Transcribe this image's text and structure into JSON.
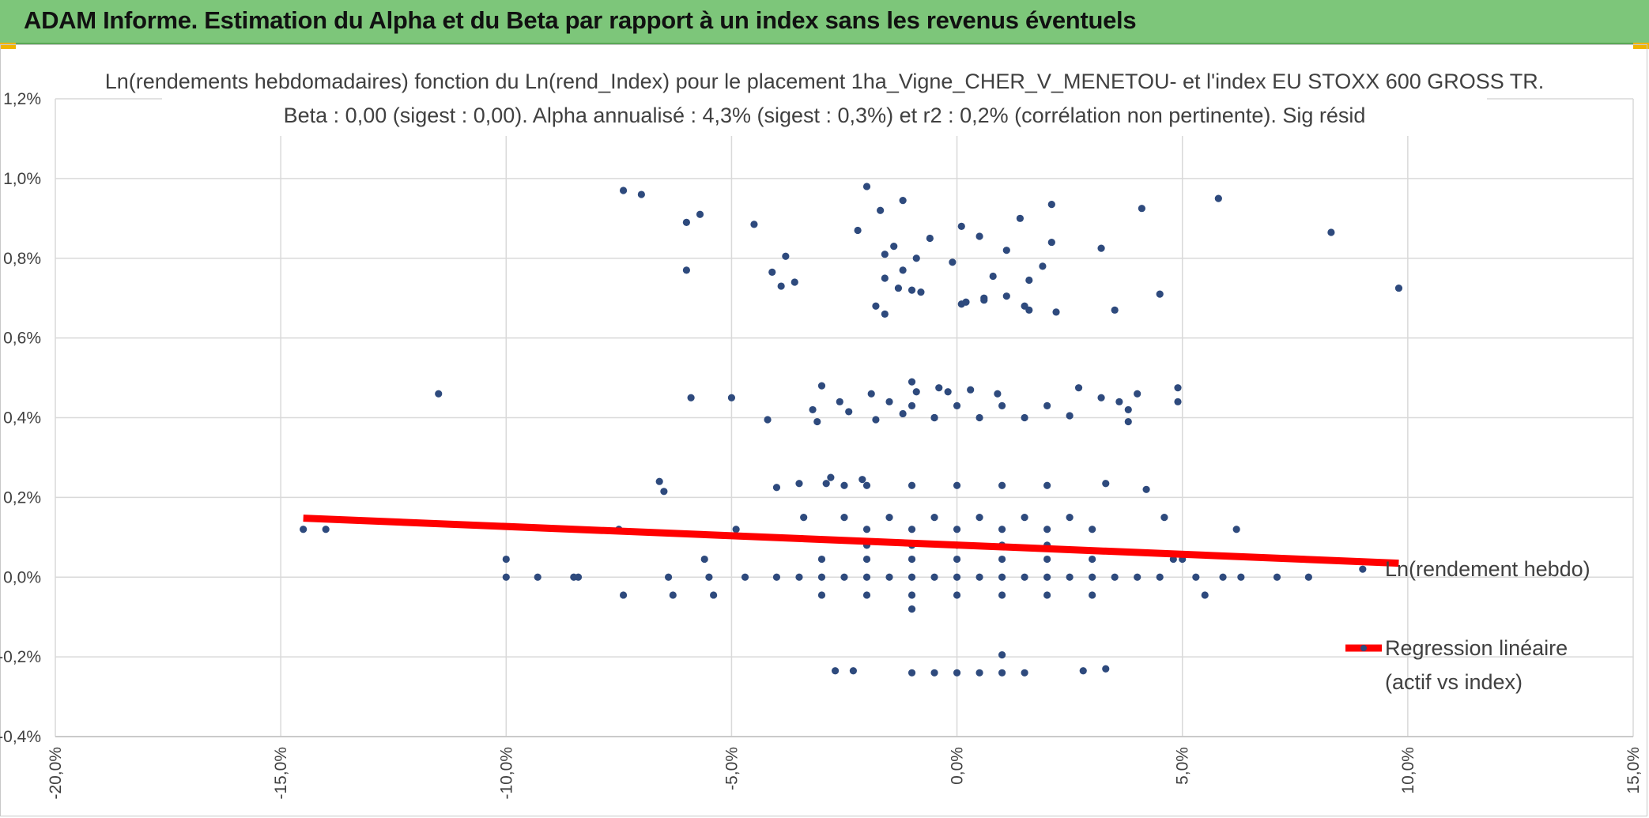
{
  "header": {
    "title": "ADAM Informe. Estimation du Alpha et du Beta par rapport à un index sans les revenus éventuels"
  },
  "colors": {
    "banner": "#7dc67a",
    "points": "#2e4a7d",
    "regression": "#ff0000",
    "grid": "#d9d9d9"
  },
  "chart_data": {
    "type": "scatter",
    "title": "Ln(rendements hebdomadaires) fonction du Ln(rend_Index) pour le placement 1ha_Vigne_CHER_V_MENETOU- et l'index EU STOXX 600 GROSS TR.",
    "subtitle": "Beta : 0,00 (sigest : 0,00). Alpha annualisé : 4,3% (sigest : 0,3%) et r2 : 0,2% (corrélation non pertinente). Sig résid",
    "xlabel": "",
    "ylabel": "",
    "xlim": [
      -20,
      15
    ],
    "ylim": [
      -0.4,
      1.2
    ],
    "x_ticks": [
      "-20,0%",
      "-15,0%",
      "-10,0%",
      "-5,0%",
      "0,0%",
      "5,0%",
      "10,0%",
      "15,0%"
    ],
    "y_ticks": [
      "-0,4%",
      "-0,2%",
      "0,0%",
      "0,2%",
      "0,4%",
      "0,6%",
      "0,8%",
      "1,0%",
      "1,2%"
    ],
    "grid": true,
    "legend_position": "right",
    "series": [
      {
        "name": "Ln(rendement hebdo)",
        "kind": "points",
        "points": [
          [
            -14.5,
            0.12
          ],
          [
            -14.0,
            0.12
          ],
          [
            -11.5,
            0.46
          ],
          [
            -10.0,
            0.0
          ],
          [
            -10.0,
            0.045
          ],
          [
            -9.3,
            0.0
          ],
          [
            -8.5,
            0.0
          ],
          [
            -8.4,
            0.0
          ],
          [
            -7.5,
            0.12
          ],
          [
            -7.4,
            -0.045
          ],
          [
            -7.4,
            0.97
          ],
          [
            -7.0,
            0.96
          ],
          [
            -6.6,
            0.24
          ],
          [
            -6.5,
            0.215
          ],
          [
            -6.4,
            0.0
          ],
          [
            -6.3,
            -0.045
          ],
          [
            -6.0,
            0.89
          ],
          [
            -6.0,
            0.77
          ],
          [
            -5.9,
            0.45
          ],
          [
            -5.7,
            0.91
          ],
          [
            -5.6,
            0.045
          ],
          [
            -5.5,
            0.0
          ],
          [
            -5.4,
            -0.045
          ],
          [
            -5.0,
            0.45
          ],
          [
            -4.9,
            0.12
          ],
          [
            -4.7,
            0.0
          ],
          [
            -4.5,
            0.885
          ],
          [
            -4.2,
            0.395
          ],
          [
            -4.1,
            0.765
          ],
          [
            -4.0,
            0.225
          ],
          [
            -3.9,
            0.73
          ],
          [
            -3.8,
            0.805
          ],
          [
            -3.6,
            0.74
          ],
          [
            -3.5,
            0.235
          ],
          [
            -3.4,
            0.15
          ],
          [
            -3.2,
            0.42
          ],
          [
            -3.1,
            0.39
          ],
          [
            -3.0,
            0.48
          ],
          [
            -2.9,
            0.235
          ],
          [
            -2.8,
            0.25
          ],
          [
            -2.7,
            -0.235
          ],
          [
            -2.6,
            0.44
          ],
          [
            -2.5,
            0.23
          ],
          [
            -2.4,
            0.415
          ],
          [
            -2.3,
            -0.235
          ],
          [
            -2.2,
            0.87
          ],
          [
            -2.1,
            0.245
          ],
          [
            -2.0,
            0.98
          ],
          [
            -1.9,
            0.46
          ],
          [
            -1.8,
            0.395
          ],
          [
            -1.8,
            0.68
          ],
          [
            -1.7,
            0.92
          ],
          [
            -1.6,
            0.81
          ],
          [
            -1.6,
            0.75
          ],
          [
            -1.6,
            0.66
          ],
          [
            -1.5,
            0.44
          ],
          [
            -1.4,
            0.83
          ],
          [
            -1.3,
            0.725
          ],
          [
            -1.2,
            0.41
          ],
          [
            -1.2,
            0.77
          ],
          [
            -1.2,
            0.945
          ],
          [
            -1.0,
            0.49
          ],
          [
            -1.0,
            -0.08
          ],
          [
            -1.0,
            0.72
          ],
          [
            -0.9,
            0.8
          ],
          [
            -0.9,
            0.465
          ],
          [
            -0.8,
            0.715
          ],
          [
            -0.6,
            0.85
          ],
          [
            -0.5,
            0.4
          ],
          [
            -0.4,
            0.475
          ],
          [
            -0.2,
            0.465
          ],
          [
            -0.1,
            0.79
          ],
          [
            0.1,
            0.685
          ],
          [
            0.1,
            0.88
          ],
          [
            0.2,
            0.69
          ],
          [
            0.3,
            0.47
          ],
          [
            0.5,
            0.855
          ],
          [
            0.6,
            0.7
          ],
          [
            0.6,
            0.695
          ],
          [
            0.8,
            0.755
          ],
          [
            0.9,
            0.46
          ],
          [
            1.0,
            -0.195
          ],
          [
            1.1,
            0.82
          ],
          [
            1.1,
            0.705
          ],
          [
            1.4,
            0.9
          ],
          [
            1.5,
            0.68
          ],
          [
            1.6,
            0.745
          ],
          [
            1.6,
            0.67
          ],
          [
            1.9,
            0.78
          ],
          [
            2.1,
            0.935
          ],
          [
            2.1,
            0.84
          ],
          [
            2.2,
            0.665
          ],
          [
            2.5,
            0.405
          ],
          [
            2.7,
            0.475
          ],
          [
            2.8,
            -0.235
          ],
          [
            3.2,
            0.45
          ],
          [
            3.2,
            0.825
          ],
          [
            3.3,
            -0.23
          ],
          [
            3.3,
            0.235
          ],
          [
            3.5,
            0.67
          ],
          [
            3.6,
            0.44
          ],
          [
            3.8,
            0.42
          ],
          [
            3.8,
            0.39
          ],
          [
            4.0,
            0.46
          ],
          [
            4.1,
            0.925
          ],
          [
            4.2,
            0.22
          ],
          [
            4.5,
            0.71
          ],
          [
            4.6,
            0.15
          ],
          [
            4.8,
            0.045
          ],
          [
            4.9,
            0.475
          ],
          [
            4.9,
            0.44
          ],
          [
            5.0,
            0.045
          ],
          [
            5.3,
            0.0
          ],
          [
            5.5,
            -0.045
          ],
          [
            5.8,
            0.95
          ],
          [
            5.9,
            0.0
          ],
          [
            6.2,
            0.12
          ],
          [
            6.3,
            0.0
          ],
          [
            7.1,
            0.0
          ],
          [
            7.8,
            0.0
          ],
          [
            8.3,
            0.865
          ],
          [
            9.0,
            0.02
          ],
          [
            9.8,
            0.725
          ],
          [
            -3.0,
            0.0
          ],
          [
            -2.5,
            0.0
          ],
          [
            -2.0,
            0.0
          ],
          [
            -1.5,
            0.0
          ],
          [
            -1.0,
            0.0
          ],
          [
            -0.5,
            0.0
          ],
          [
            0.0,
            0.0
          ],
          [
            0.5,
            0.0
          ],
          [
            1.0,
            0.0
          ],
          [
            1.5,
            0.0
          ],
          [
            2.0,
            0.0
          ],
          [
            2.5,
            0.0
          ],
          [
            3.0,
            0.0
          ],
          [
            3.5,
            0.0
          ],
          [
            4.0,
            0.0
          ],
          [
            -3.5,
            0.0
          ],
          [
            -4.0,
            0.0
          ],
          [
            4.5,
            0.0
          ],
          [
            -3.0,
            0.045
          ],
          [
            -2.0,
            0.045
          ],
          [
            -1.0,
            0.045
          ],
          [
            0.0,
            0.045
          ],
          [
            1.0,
            0.045
          ],
          [
            2.0,
            0.045
          ],
          [
            3.0,
            0.045
          ],
          [
            -3.0,
            -0.045
          ],
          [
            -2.0,
            -0.045
          ],
          [
            -1.0,
            -0.045
          ],
          [
            0.0,
            -0.045
          ],
          [
            1.0,
            -0.045
          ],
          [
            2.0,
            -0.045
          ],
          [
            3.0,
            -0.045
          ],
          [
            -2.0,
            0.08
          ],
          [
            -1.0,
            0.08
          ],
          [
            0.0,
            0.08
          ],
          [
            1.0,
            0.08
          ],
          [
            2.0,
            0.08
          ],
          [
            -2.0,
            0.12
          ],
          [
            -1.0,
            0.12
          ],
          [
            0.0,
            0.12
          ],
          [
            1.0,
            0.12
          ],
          [
            2.0,
            0.12
          ],
          [
            3.0,
            0.12
          ],
          [
            -2.5,
            0.15
          ],
          [
            -1.5,
            0.15
          ],
          [
            -0.5,
            0.15
          ],
          [
            0.5,
            0.15
          ],
          [
            1.5,
            0.15
          ],
          [
            2.5,
            0.15
          ],
          [
            -2.0,
            0.23
          ],
          [
            -1.0,
            0.23
          ],
          [
            0.0,
            0.23
          ],
          [
            1.0,
            0.23
          ],
          [
            2.0,
            0.23
          ],
          [
            -1.0,
            0.43
          ],
          [
            0.0,
            0.43
          ],
          [
            1.0,
            0.43
          ],
          [
            2.0,
            0.43
          ],
          [
            -0.5,
            0.4
          ],
          [
            0.5,
            0.4
          ],
          [
            1.5,
            0.4
          ],
          [
            -1.0,
            -0.24
          ],
          [
            -0.5,
            -0.24
          ],
          [
            0.0,
            -0.24
          ],
          [
            0.5,
            -0.24
          ],
          [
            1.0,
            -0.24
          ],
          [
            1.5,
            -0.24
          ]
        ]
      },
      {
        "name": "Regression linéaire (actif vs index)",
        "kind": "line",
        "points": [
          [
            -14.5,
            0.148
          ],
          [
            9.8,
            0.035
          ]
        ]
      }
    ]
  },
  "legend": {
    "series_label": "Ln(rendement hebdo)",
    "regression_label_line1": "Regression linéaire",
    "regression_label_line2": "(actif vs index)"
  }
}
